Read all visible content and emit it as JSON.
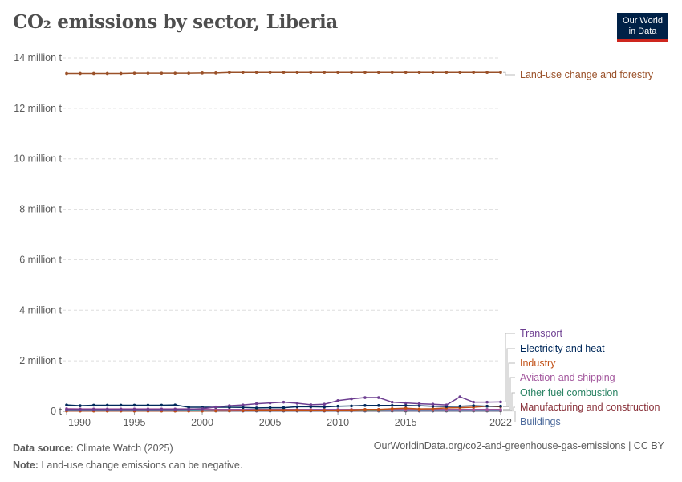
{
  "title": "CO₂ emissions by sector, Liberia",
  "logo": {
    "line1": "Our World",
    "line2": "in Data"
  },
  "footer": {
    "source_label": "Data source:",
    "source": "Climate Watch (2025)",
    "note_label": "Note:",
    "note": "Land-use change emissions can be negative.",
    "url": "OurWorldinData.org/co2-and-greenhouse-gas-emissions | CC BY"
  },
  "chart_data": {
    "type": "line",
    "title": "CO₂ emissions by sector, Liberia",
    "ylim": [
      0,
      14000000
    ],
    "yticks": [
      {
        "v": 0,
        "label": "0 t"
      },
      {
        "v": 2000000,
        "label": "2 million t"
      },
      {
        "v": 4000000,
        "label": "4 million t"
      },
      {
        "v": 6000000,
        "label": "6 million t"
      },
      {
        "v": 8000000,
        "label": "8 million t"
      },
      {
        "v": 10000000,
        "label": "10 million t"
      },
      {
        "v": 12000000,
        "label": "12 million t"
      },
      {
        "v": 14000000,
        "label": "14 million t"
      }
    ],
    "xticks": [
      1990,
      1995,
      2000,
      2005,
      2010,
      2015,
      2022
    ],
    "grid": "horizontal dashed",
    "legend": "right, line-end labels",
    "x": [
      1990,
      1991,
      1992,
      1993,
      1994,
      1995,
      1996,
      1997,
      1998,
      1999,
      2000,
      2001,
      2002,
      2003,
      2004,
      2005,
      2006,
      2007,
      2008,
      2009,
      2010,
      2011,
      2012,
      2013,
      2014,
      2015,
      2016,
      2017,
      2018,
      2019,
      2020,
      2021,
      2022
    ],
    "series": [
      {
        "name": "Land-use change and forestry",
        "color": "#9a5129",
        "unit": "million t",
        "values": [
          13.38,
          13.38,
          13.38,
          13.38,
          13.38,
          13.39,
          13.39,
          13.39,
          13.39,
          13.39,
          13.4,
          13.4,
          13.42,
          13.42,
          13.42,
          13.42,
          13.42,
          13.42,
          13.42,
          13.42,
          13.42,
          13.42,
          13.42,
          13.42,
          13.42,
          13.42,
          13.42,
          13.42,
          13.42,
          13.42,
          13.42,
          13.42,
          13.42
        ]
      },
      {
        "name": "Transport",
        "color": "#6d3e91",
        "unit": "million t",
        "values": [
          0.07,
          0.07,
          0.07,
          0.07,
          0.07,
          0.07,
          0.07,
          0.07,
          0.07,
          0.08,
          0.1,
          0.17,
          0.22,
          0.25,
          0.3,
          0.33,
          0.36,
          0.32,
          0.26,
          0.28,
          0.42,
          0.49,
          0.54,
          0.54,
          0.36,
          0.33,
          0.3,
          0.28,
          0.25,
          0.57,
          0.36,
          0.36,
          0.37
        ]
      },
      {
        "name": "Electricity and heat",
        "color": "#00295b",
        "unit": "million t",
        "values": [
          0.25,
          0.22,
          0.24,
          0.24,
          0.24,
          0.24,
          0.24,
          0.24,
          0.25,
          0.16,
          0.16,
          0.16,
          0.16,
          0.15,
          0.13,
          0.14,
          0.14,
          0.18,
          0.18,
          0.17,
          0.2,
          0.21,
          0.23,
          0.23,
          0.23,
          0.23,
          0.22,
          0.2,
          0.19,
          0.2,
          0.22,
          0.2,
          0.2
        ]
      },
      {
        "name": "Industry",
        "color": "#c15016",
        "unit": "million t",
        "values": [
          0.01,
          0.01,
          0.01,
          0.01,
          0.01,
          0.01,
          0.01,
          0.01,
          0.01,
          0.01,
          0.01,
          0.02,
          0.02,
          0.03,
          0.05,
          0.05,
          0.05,
          0.05,
          0.04,
          0.04,
          0.04,
          0.05,
          0.07,
          0.07,
          0.1,
          0.12,
          0.09,
          0.1,
          0.13,
          0.14,
          0.16,
          0.2,
          0.18
        ]
      },
      {
        "name": "Aviation and shipping",
        "color": "#a2559c",
        "unit": "million t",
        "values": [
          0.1,
          0.09,
          0.09,
          0.09,
          0.09,
          0.09,
          0.09,
          0.09,
          0.09,
          0.09,
          0.08,
          0.07,
          0.07,
          0.07,
          0.07,
          0.07,
          0.07,
          0.07,
          0.07,
          0.07,
          0.07,
          0.07,
          0.07,
          0.07,
          0.07,
          0.07,
          0.07,
          0.07,
          0.07,
          0.07,
          0.07,
          0.07,
          0.07
        ]
      },
      {
        "name": "Other fuel combustion",
        "color": "#38aaba",
        "unit": "million t",
        "values": [
          0.05,
          0.05,
          0.05,
          0.05,
          0.05,
          0.05,
          0.05,
          0.05,
          0.05,
          0.05,
          0.05,
          0.04,
          0.04,
          0.04,
          0.04,
          0.04,
          0.04,
          0.04,
          0.04,
          0.04,
          0.04,
          0.04,
          0.04,
          0.04,
          0.04,
          0.04,
          0.04,
          0.04,
          0.04,
          0.04,
          0.04,
          0.04,
          0.04
        ]
      },
      {
        "name": "Manufacturing and construction",
        "color": "#883039",
        "unit": "million t",
        "values": [
          0.02,
          0.02,
          0.02,
          0.02,
          0.02,
          0.02,
          0.02,
          0.02,
          0.02,
          0.02,
          0.02,
          0.02,
          0.02,
          0.02,
          0.02,
          0.02,
          0.02,
          0.02,
          0.02,
          0.02,
          0.02,
          0.02,
          0.02,
          0.02,
          0.02,
          0.02,
          0.02,
          0.02,
          0.02,
          0.02,
          0.02,
          0.02,
          0.02
        ]
      },
      {
        "name": "Buildings",
        "color": "#4c6a9c",
        "unit": "million t",
        "values": [
          0.01,
          0.01,
          0.01,
          0.01,
          0.01,
          0.01,
          0.01,
          0.01,
          0.01,
          0.01,
          0.01,
          0.01,
          0.01,
          0.01,
          0.01,
          0.01,
          0.01,
          0.01,
          0.01,
          0.01,
          0.01,
          0.01,
          0.01,
          0.01,
          0.01,
          0.01,
          0.01,
          0.01,
          0.01,
          0.01,
          0.01,
          0.01,
          0.01
        ]
      }
    ],
    "label_colors": {
      "Other fuel combustion": "#2c8465"
    }
  }
}
